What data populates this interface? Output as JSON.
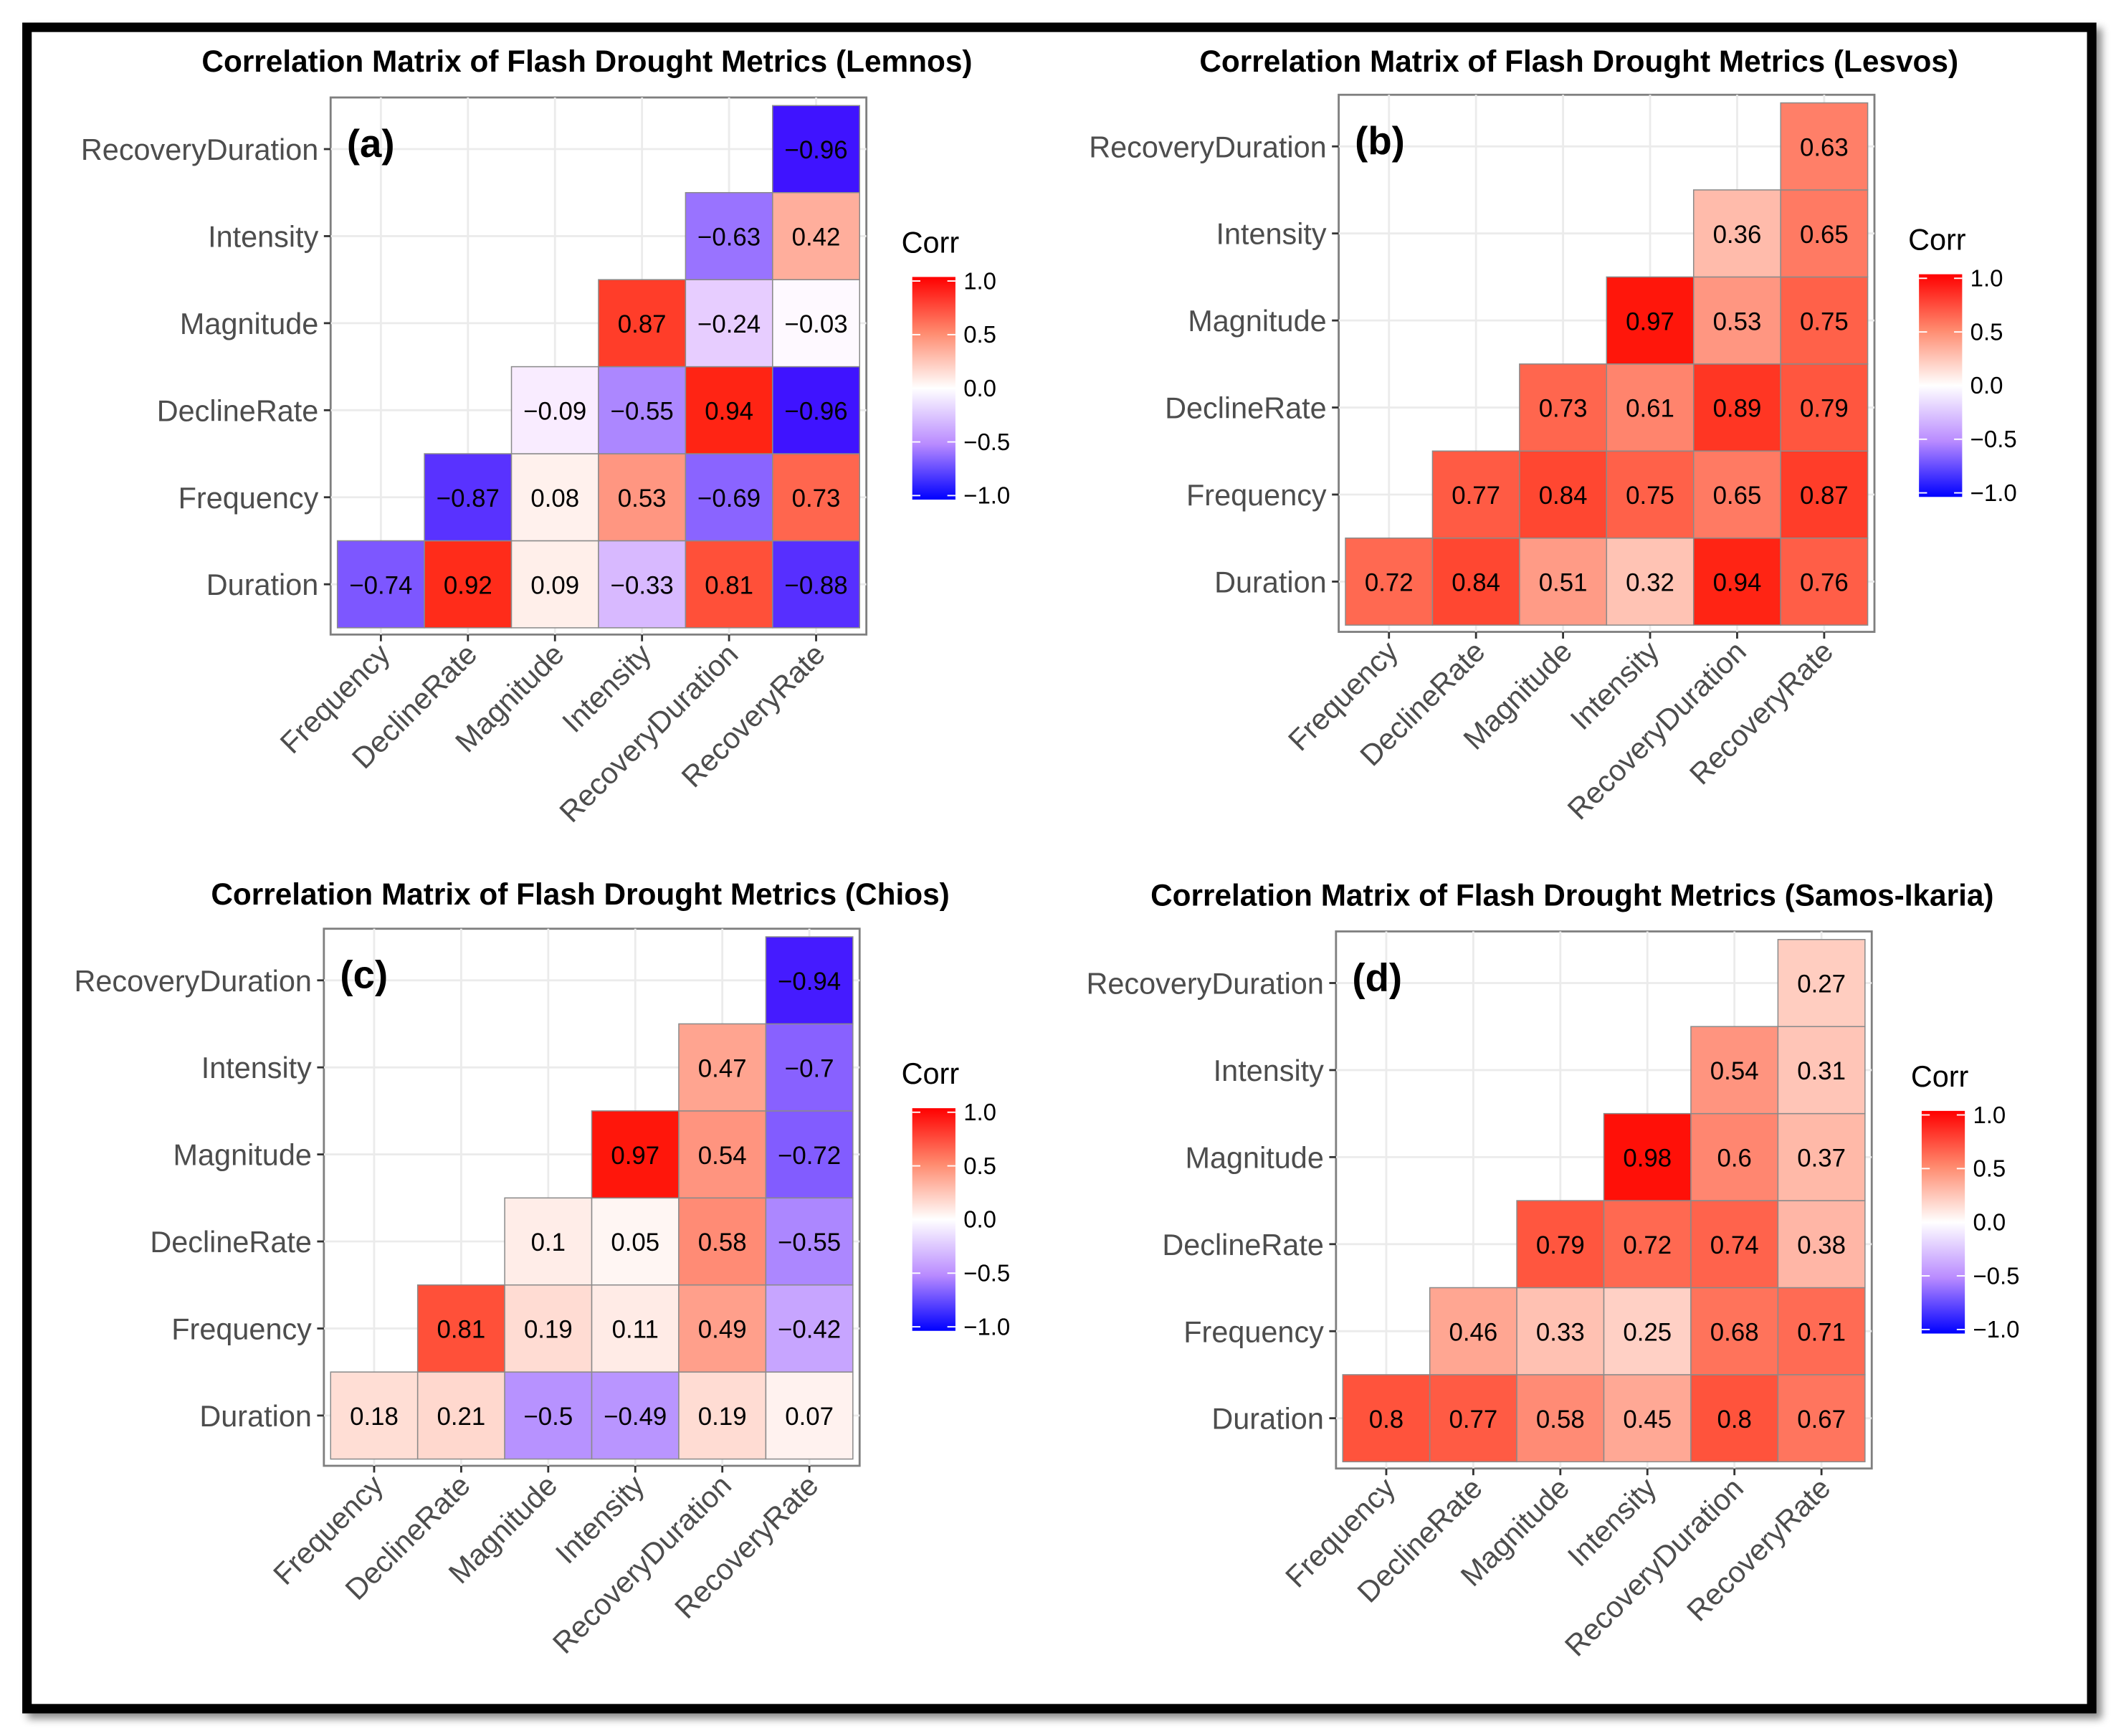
{
  "chart_data": [
    {
      "type": "heatmap",
      "title": "Correlation Matrix of Flash Drought Metrics (Lemnos)",
      "panel_label": "(a)",
      "rows": [
        "Duration",
        "Frequency",
        "DeclineRate",
        "Magnitude",
        "Intensity",
        "RecoveryDuration"
      ],
      "columns": [
        "Frequency",
        "DeclineRate",
        "Magnitude",
        "Intensity",
        "RecoveryDuration",
        "RecoveryRate"
      ],
      "values": [
        [
          -0.74,
          0.92,
          0.09,
          -0.33,
          0.81,
          -0.88
        ],
        [
          -0.87,
          0.08,
          0.53,
          -0.69,
          0.73
        ],
        [
          -0.09,
          -0.55,
          0.94,
          -0.96
        ],
        [
          0.87,
          -0.24,
          -0.03
        ],
        [
          -0.63,
          0.42
        ],
        [
          -0.96
        ]
      ],
      "labels": [
        [
          "−0.74",
          "0.92",
          "0.09",
          "−0.33",
          "0.81",
          "−0.88"
        ],
        [
          "−0.87",
          "0.08",
          "0.53",
          "−0.69",
          "0.73"
        ],
        [
          "−0.09",
          "−0.55",
          "0.94",
          "−0.96"
        ],
        [
          "0.87",
          "−0.24",
          "−0.03"
        ],
        [
          "−0.63",
          "0.42"
        ],
        [
          "−0.96"
        ]
      ],
      "legend": {
        "title": "Corr",
        "ticks": [
          "1.0",
          "0.5",
          "0.0",
          "−0.5",
          "−1.0"
        ],
        "range": [
          -1,
          1
        ],
        "low": "#0000FF",
        "mid": "#FFFFFF",
        "high": "#FF0000"
      }
    },
    {
      "type": "heatmap",
      "title": "Correlation Matrix of Flash Drought Metrics (Lesvos)",
      "panel_label": "(b)",
      "rows": [
        "Duration",
        "Frequency",
        "DeclineRate",
        "Magnitude",
        "Intensity",
        "RecoveryDuration"
      ],
      "columns": [
        "Frequency",
        "DeclineRate",
        "Magnitude",
        "Intensity",
        "RecoveryDuration",
        "RecoveryRate"
      ],
      "values": [
        [
          0.72,
          0.84,
          0.51,
          0.32,
          0.94,
          0.76
        ],
        [
          0.77,
          0.84,
          0.75,
          0.65,
          0.87
        ],
        [
          0.73,
          0.61,
          0.89,
          0.79
        ],
        [
          0.97,
          0.53,
          0.75
        ],
        [
          0.36,
          0.65
        ],
        [
          0.63
        ]
      ],
      "labels": [
        [
          "0.72",
          "0.84",
          "0.51",
          "0.32",
          "0.94",
          "0.76"
        ],
        [
          "0.77",
          "0.84",
          "0.75",
          "0.65",
          "0.87"
        ],
        [
          "0.73",
          "0.61",
          "0.89",
          "0.79"
        ],
        [
          "0.97",
          "0.53",
          "0.75"
        ],
        [
          "0.36",
          "0.65"
        ],
        [
          "0.63"
        ]
      ],
      "legend": {
        "title": "Corr",
        "ticks": [
          "1.0",
          "0.5",
          "0.0",
          "−0.5",
          "−1.0"
        ],
        "range": [
          -1,
          1
        ],
        "low": "#0000FF",
        "mid": "#FFFFFF",
        "high": "#FF0000"
      }
    },
    {
      "type": "heatmap",
      "title": "Correlation Matrix of Flash Drought Metrics (Chios)",
      "panel_label": "(c)",
      "rows": [
        "Duration",
        "Frequency",
        "DeclineRate",
        "Magnitude",
        "Intensity",
        "RecoveryDuration"
      ],
      "columns": [
        "Frequency",
        "DeclineRate",
        "Magnitude",
        "Intensity",
        "RecoveryDuration",
        "RecoveryRate"
      ],
      "values": [
        [
          0.18,
          0.21,
          -0.5,
          -0.49,
          0.19,
          0.07
        ],
        [
          0.81,
          0.19,
          0.11,
          0.49,
          -0.42
        ],
        [
          0.1,
          0.05,
          0.58,
          -0.55
        ],
        [
          0.97,
          0.54,
          -0.72
        ],
        [
          0.47,
          -0.7
        ],
        [
          -0.94
        ]
      ],
      "labels": [
        [
          "0.18",
          "0.21",
          "−0.5",
          "−0.49",
          "0.19",
          "0.07"
        ],
        [
          "0.81",
          "0.19",
          "0.11",
          "0.49",
          "−0.42"
        ],
        [
          "0.1",
          "0.05",
          "0.58",
          "−0.55"
        ],
        [
          "0.97",
          "0.54",
          "−0.72"
        ],
        [
          "0.47",
          "−0.7"
        ],
        [
          "−0.94"
        ]
      ],
      "legend": {
        "title": "Corr",
        "ticks": [
          "1.0",
          "0.5",
          "0.0",
          "−0.5",
          "−1.0"
        ],
        "range": [
          -1,
          1
        ],
        "low": "#0000FF",
        "mid": "#FFFFFF",
        "high": "#FF0000"
      }
    },
    {
      "type": "heatmap",
      "title": "Correlation Matrix of Flash Drought Metrics (Samos-Ikaria)",
      "panel_label": "(d)",
      "rows": [
        "Duration",
        "Frequency",
        "DeclineRate",
        "Magnitude",
        "Intensity",
        "RecoveryDuration"
      ],
      "columns": [
        "Frequency",
        "DeclineRate",
        "Magnitude",
        "Intensity",
        "RecoveryDuration",
        "RecoveryRate"
      ],
      "values": [
        [
          0.8,
          0.77,
          0.58,
          0.45,
          0.8,
          0.67
        ],
        [
          0.46,
          0.33,
          0.25,
          0.68,
          0.71
        ],
        [
          0.79,
          0.72,
          0.74,
          0.38
        ],
        [
          0.98,
          0.6,
          0.37
        ],
        [
          0.54,
          0.31
        ],
        [
          0.27
        ]
      ],
      "labels": [
        [
          "0.8",
          "0.77",
          "0.58",
          "0.45",
          "0.8",
          "0.67"
        ],
        [
          "0.46",
          "0.33",
          "0.25",
          "0.68",
          "0.71"
        ],
        [
          "0.79",
          "0.72",
          "0.74",
          "0.38"
        ],
        [
          "0.98",
          "0.6",
          "0.37"
        ],
        [
          "0.54",
          "0.31"
        ],
        [
          "0.27"
        ]
      ],
      "legend": {
        "title": "Corr",
        "ticks": [
          "1.0",
          "0.5",
          "0.0",
          "−0.5",
          "−1.0"
        ],
        "range": [
          -1,
          1
        ],
        "low": "#0000FF",
        "mid": "#FFFFFF",
        "high": "#FF0000"
      }
    }
  ]
}
